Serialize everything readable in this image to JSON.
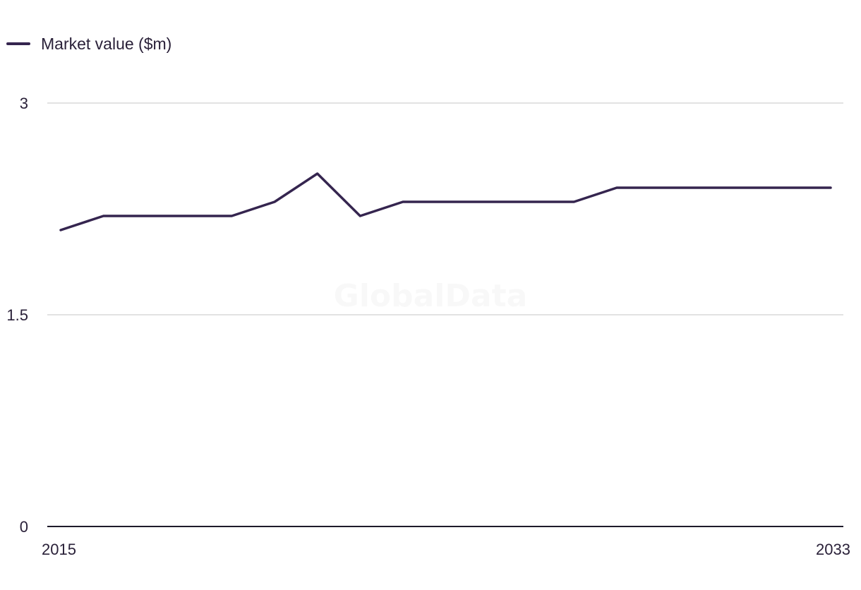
{
  "legend": {
    "label": "Market value ($m)"
  },
  "watermark": "GlobalData",
  "colors": {
    "series": "#35254f",
    "grid": "#d9d9d9",
    "axis": "#1e1a2a",
    "text": "#2a2139"
  },
  "chart_data": {
    "type": "line",
    "x": [
      2015,
      2016,
      2017,
      2018,
      2019,
      2020,
      2021,
      2022,
      2023,
      2024,
      2025,
      2026,
      2027,
      2028,
      2029,
      2030,
      2031,
      2032,
      2033
    ],
    "x_tick_labels": [
      "2015",
      "2033"
    ],
    "y_tick_values": [
      0,
      1.5,
      3
    ],
    "y_tick_labels": [
      "0",
      "1.5",
      "3"
    ],
    "ylim": [
      0,
      3
    ],
    "grid": true,
    "legend_position": "top-left",
    "series": [
      {
        "name": "Market value ($m)",
        "values": [
          2.1,
          2.2,
          2.2,
          2.2,
          2.2,
          2.3,
          2.5,
          2.2,
          2.3,
          2.3,
          2.3,
          2.3,
          2.3,
          2.4,
          2.4,
          2.4,
          2.4,
          2.4,
          2.4
        ]
      }
    ]
  }
}
